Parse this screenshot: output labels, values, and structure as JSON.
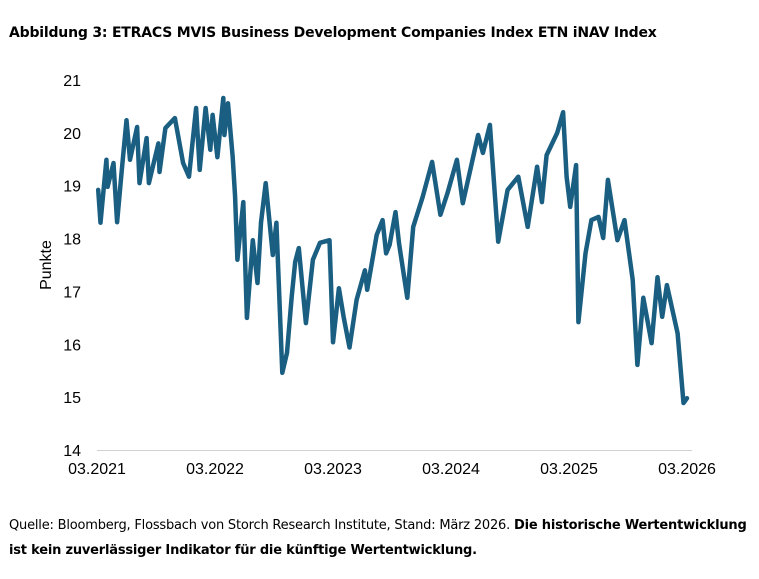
{
  "title": "Abbildung 3: ETRACS MVIS Business Development Companies Index ETN iNAV Index",
  "footer": {
    "source": "Quelle: Bloomberg, Flossbach von Storch Research Institute, Stand: März 2026. ",
    "disclaimer": "Die historische Wertentwicklung ist kein zuverlässiger Indikator für die künftige Wertentwicklung."
  },
  "chart_data": {
    "type": "line",
    "title": "Abbildung 3: ETRACS MVIS Business Development Companies Index ETN iNAV Index",
    "xlabel": "",
    "ylabel": "Punkte",
    "x_unit": "years since 03.2021",
    "xlim": [
      0,
      5
    ],
    "ylim": [
      14,
      21
    ],
    "xticks": [
      0,
      1,
      2,
      3,
      4,
      5
    ],
    "xtick_labels": [
      "03.2021",
      "03.2022",
      "03.2023",
      "03.2024",
      "03.2025",
      "03.2026"
    ],
    "yticks": [
      14,
      15,
      16,
      17,
      18,
      19,
      20,
      21
    ],
    "grid": false,
    "color": "#1a5f82",
    "series": [
      {
        "name": "ETRACS MVIS BDC Index ETN iNAV",
        "x": [
          0.01,
          0.03,
          0.08,
          0.09,
          0.14,
          0.17,
          0.21,
          0.25,
          0.28,
          0.34,
          0.36,
          0.42,
          0.44,
          0.52,
          0.53,
          0.58,
          0.66,
          0.73,
          0.78,
          0.84,
          0.87,
          0.92,
          0.96,
          0.98,
          1.02,
          1.07,
          1.08,
          1.11,
          1.15,
          1.17,
          1.19,
          1.24,
          1.27,
          1.32,
          1.36,
          1.39,
          1.43,
          1.49,
          1.52,
          1.57,
          1.61,
          1.65,
          1.68,
          1.71,
          1.77,
          1.83,
          1.89,
          1.97,
          2.0,
          2.05,
          2.09,
          2.14,
          2.2,
          2.27,
          2.29,
          2.37,
          2.42,
          2.45,
          2.48,
          2.53,
          2.56,
          2.63,
          2.68,
          2.76,
          2.84,
          2.91,
          2.97,
          3.05,
          3.1,
          3.23,
          3.27,
          3.33,
          3.4,
          3.48,
          3.57,
          3.65,
          3.73,
          3.77,
          3.81,
          3.9,
          3.95,
          3.98,
          4.01,
          4.06,
          4.08,
          4.14,
          4.19,
          4.25,
          4.29,
          4.33,
          4.41,
          4.47,
          4.54,
          4.58,
          4.63,
          4.7,
          4.75,
          4.79,
          4.83,
          4.92,
          4.97,
          5.0
        ],
        "y": [
          18.92,
          18.3,
          19.49,
          18.98,
          19.43,
          18.31,
          19.3,
          20.24,
          19.49,
          20.11,
          19.05,
          19.9,
          19.05,
          19.8,
          19.26,
          20.09,
          20.28,
          19.43,
          19.17,
          20.47,
          19.3,
          20.47,
          19.68,
          20.34,
          19.54,
          20.66,
          19.96,
          20.56,
          19.54,
          18.79,
          17.6,
          18.69,
          16.5,
          17.97,
          17.16,
          18.3,
          19.05,
          17.69,
          18.3,
          15.46,
          15.84,
          16.9,
          17.56,
          17.82,
          16.4,
          17.6,
          17.92,
          17.97,
          16.04,
          17.06,
          16.52,
          15.94,
          16.84,
          17.4,
          17.03,
          18.07,
          18.35,
          17.72,
          17.88,
          18.5,
          17.9,
          16.88,
          18.22,
          18.79,
          19.45,
          18.45,
          18.86,
          19.49,
          18.67,
          19.96,
          19.62,
          20.15,
          17.94,
          18.92,
          19.17,
          18.22,
          19.36,
          18.69,
          19.58,
          20.0,
          20.39,
          19.17,
          18.6,
          19.39,
          16.42,
          17.72,
          18.35,
          18.41,
          18.01,
          19.11,
          17.97,
          18.35,
          17.22,
          15.61,
          16.88,
          16.02,
          17.27,
          16.52,
          17.12,
          16.21,
          14.89,
          14.98
        ]
      }
    ]
  }
}
